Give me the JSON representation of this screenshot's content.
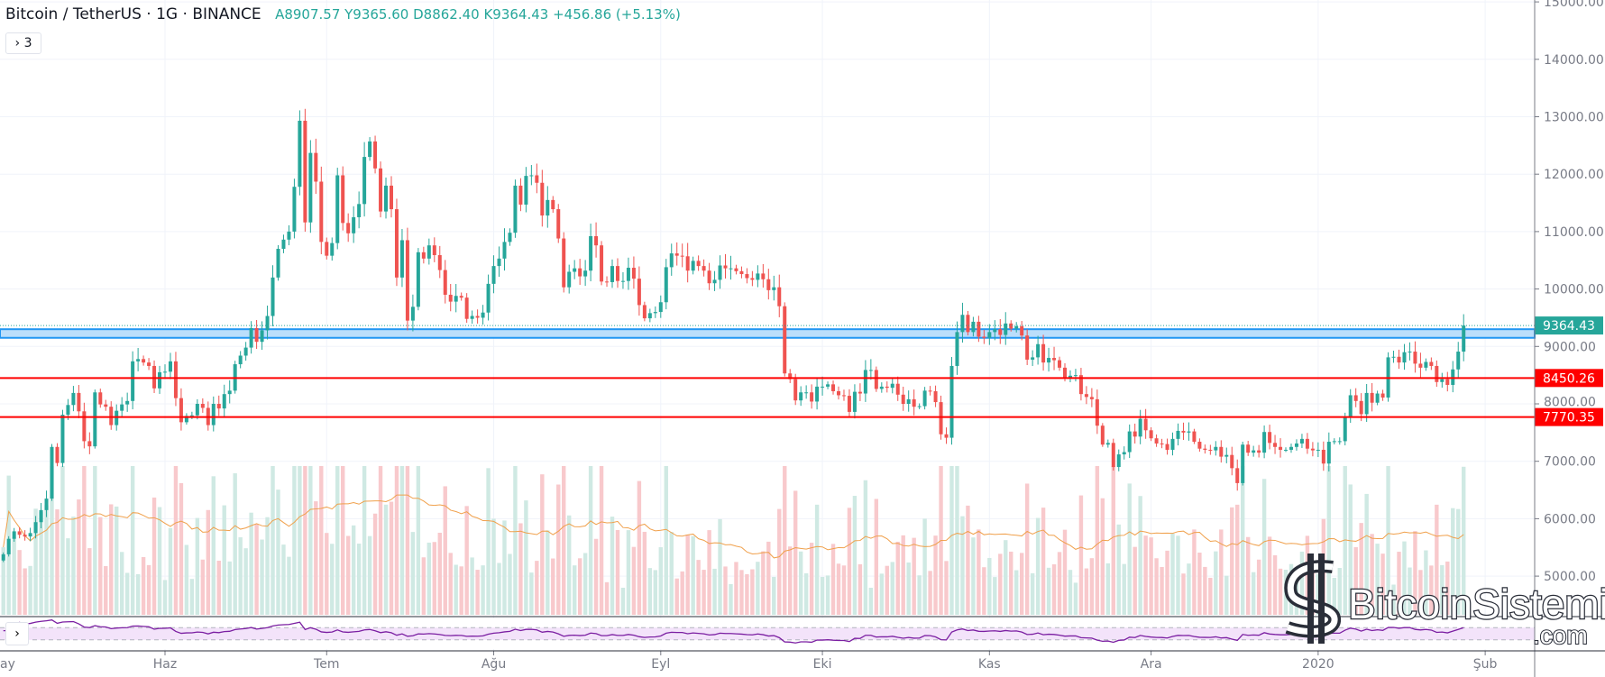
{
  "header": {
    "symbol": "Bitcoin / TetherUS · 1G · BINANCE",
    "ohlc": "A8907.57  Y9365.60  D8862.40  K9364.43  +456.86 (+5.13%)",
    "indicators_toggle": "› 3"
  },
  "rsi_expand": "›",
  "colors": {
    "up": "#26a69a",
    "down": "#ef5350",
    "volume_up": "#cfe9e3",
    "volume_down": "#f8c9cc",
    "volume_ma": "#f0a04b",
    "rsi_line": "#7b1fa2",
    "rsi_bg": "#f3e3fa",
    "support_line": "#ff0000",
    "zone_fill": "#bbdefb",
    "zone_border": "#2196f3",
    "grid": "#f0f3fa"
  },
  "chart_data": {
    "type": "candlestick",
    "title": "Bitcoin / TetherUS · 1G · BINANCE",
    "ylim": [
      4000,
      15000
    ],
    "y_ticks": [
      "15000.00",
      "14000.00",
      "13000.00",
      "12000.00",
      "11000.00",
      "10000.00",
      "9000.00",
      "8000.00",
      "7000.00",
      "6000.00",
      "5000.00"
    ],
    "x_ticks": [
      {
        "label": "ay",
        "date": "2019-05-01"
      },
      {
        "label": "Haz",
        "date": "2019-06-01"
      },
      {
        "label": "Tem",
        "date": "2019-07-01"
      },
      {
        "label": "Ağu",
        "date": "2019-08-01"
      },
      {
        "label": "Eyl",
        "date": "2019-09-01"
      },
      {
        "label": "Eki",
        "date": "2019-10-01"
      },
      {
        "label": "Kas",
        "date": "2019-11-01"
      },
      {
        "label": "Ara",
        "date": "2019-12-01"
      },
      {
        "label": "2020",
        "date": "2020-01-01"
      },
      {
        "label": "Şub",
        "date": "2020-02-01"
      }
    ],
    "last_price": {
      "label": "9364.43",
      "value": 9364.43
    },
    "horizontal_lines": [
      {
        "label": "8450.26",
        "value": 8450.26
      },
      {
        "label": "7770.35",
        "value": 7770.35
      }
    ],
    "zone": {
      "from": 9150,
      "to": 9300
    },
    "grid": true,
    "closes_by_month": [
      {
        "month": "2019-05",
        "first_day": 2,
        "closes": [
          5380,
          5650,
          5780,
          5720,
          5690,
          5750,
          5940,
          6150,
          6350,
          7250,
          6970,
          7810,
          7980,
          8190,
          7870,
          7350,
          7260,
          8200,
          7990,
          7950,
          7630,
          7880,
          7990,
          8050,
          8740,
          8780,
          8720,
          8660,
          8270,
          8550
        ]
      },
      {
        "month": "2019-06",
        "first_day": 1,
        "closes": [
          8560,
          8740,
          8100,
          7680,
          7790,
          7800,
          8000,
          7930,
          7630,
          8000,
          7920,
          8170,
          8230,
          8690,
          8840,
          8980,
          9320,
          9080,
          9280,
          9530,
          10200,
          10700,
          10860,
          11000,
          11780,
          12930,
          11160,
          12370,
          11870,
          10820
        ]
      },
      {
        "month": "2019-07",
        "first_day": 1,
        "closes": [
          10580,
          10800,
          11980,
          11150,
          10970,
          11250,
          11480,
          12300,
          12570,
          12100,
          11350,
          11800,
          11390,
          10200,
          10850,
          9450,
          9690,
          10640,
          10530,
          10760,
          10590,
          10330,
          9900,
          9780,
          9880,
          9850,
          9480,
          9530,
          9500,
          9590,
          10090
        ]
      },
      {
        "month": "2019-08",
        "first_day": 1,
        "closes": [
          10400,
          10530,
          10820,
          10980,
          11800,
          11470,
          11970,
          11980,
          11850,
          11280,
          11550,
          11390,
          10880,
          10030,
          10300,
          10360,
          10220,
          10320,
          10920,
          10760,
          10130,
          10120,
          10400,
          10140,
          10140,
          10370,
          10180,
          9720,
          9490,
          9580,
          9600
        ]
      },
      {
        "month": "2019-09",
        "first_day": 1,
        "closes": [
          9770,
          10380,
          10620,
          10580,
          10570,
          10320,
          10490,
          10400,
          10320,
          10100,
          10160,
          10410,
          10360,
          10360,
          10310,
          10260,
          10190,
          10160,
          10270,
          10170,
          9980,
          10030,
          9700,
          8530,
          8430,
          8060,
          8200,
          8200,
          8040,
          8300
        ]
      },
      {
        "month": "2019-10",
        "first_day": 1,
        "closes": [
          8300,
          8340,
          8220,
          8150,
          8140,
          7860,
          8210,
          8180,
          8590,
          8590,
          8260,
          8300,
          8280,
          8350,
          8160,
          8000,
          8080,
          7950,
          7960,
          8230,
          8220,
          8030,
          7470,
          7410,
          8660,
          9250,
          9550,
          9250,
          9430,
          9170,
          9150
        ]
      },
      {
        "month": "2019-11",
        "first_day": 1,
        "closes": [
          9250,
          9300,
          9200,
          9400,
          9310,
          9350,
          9190,
          8770,
          8810,
          9040,
          8720,
          8800,
          8760,
          8630,
          8460,
          8490,
          8500,
          8170,
          8120,
          8080,
          7620,
          7290,
          7320,
          6900,
          7120,
          7160,
          7520,
          7430,
          7740,
          7540
        ]
      },
      {
        "month": "2019-12",
        "first_day": 1,
        "closes": [
          7400,
          7310,
          7300,
          7200,
          7390,
          7530,
          7500,
          7520,
          7340,
          7220,
          7200,
          7190,
          7250,
          7080,
          7110,
          6880,
          6620,
          7290,
          7150,
          7190,
          7150,
          7510,
          7320,
          7250,
          7200,
          7200,
          7250,
          7310,
          7390,
          7220,
          7190
        ]
      },
      {
        "month": "2020-01",
        "first_day": 1,
        "closes": [
          7200,
          6960,
          7340,
          7350,
          7350,
          7760,
          8150,
          8050,
          7820,
          8190,
          8020,
          8180,
          8110,
          8810,
          8820,
          8720,
          8900,
          8910,
          8700,
          8630,
          8730,
          8660,
          8380,
          8430,
          8330,
          8600,
          8910,
          9364.43
        ]
      }
    ]
  },
  "watermark": {
    "text": "BitcoinSistemi",
    "suffix": ".com"
  }
}
